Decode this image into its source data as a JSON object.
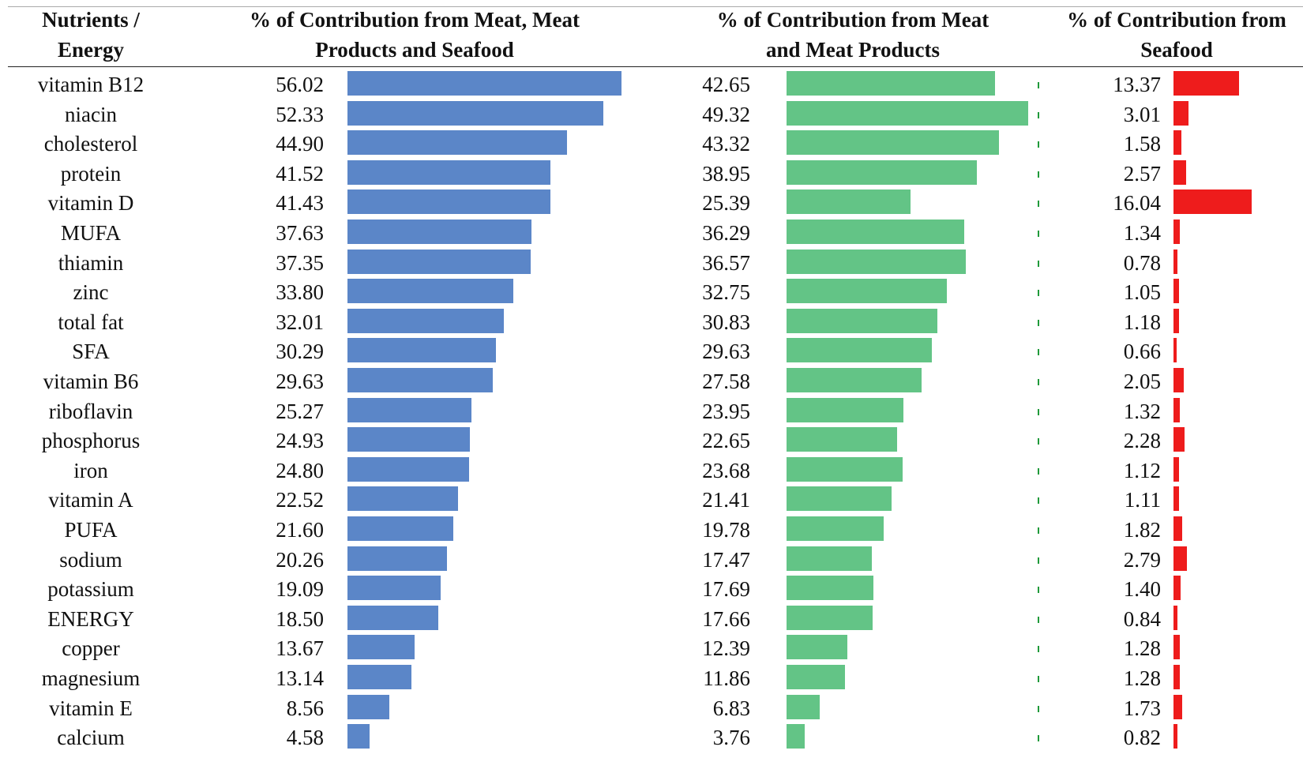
{
  "headers": {
    "col1": [
      "Nutrients /",
      "Energy"
    ],
    "col2": [
      "% of Contribution from Meat, Meat",
      "Products and Seafood"
    ],
    "col3": [
      "% of Contribution from Meat",
      "and Meat Products"
    ],
    "col4": [
      "% of Contribution from",
      "Seafood"
    ]
  },
  "colors": {
    "total": "#5B86C8",
    "meat": "#63C486",
    "seafood": "#EE1C1C"
  },
  "chart_data": {
    "type": "bar",
    "orientation": "horizontal",
    "categories": [
      "vitamin B12",
      "niacin",
      "cholesterol",
      "protein",
      "vitamin D",
      "MUFA",
      "thiamin",
      "zinc",
      "total fat",
      "SFA",
      "vitamin B6",
      "riboflavin",
      "phosphorus",
      "iron",
      "vitamin A",
      "PUFA",
      "sodium",
      "potassium",
      "ENERGY",
      "copper",
      "magnesium",
      "vitamin E",
      "calcium"
    ],
    "series": [
      {
        "name": "% of Contribution from Meat, Meat Products and Seafood",
        "values": [
          "56.02",
          "52.33",
          "44.90",
          "41.52",
          "41.43",
          "37.63",
          "37.35",
          "33.80",
          "32.01",
          "30.29",
          "29.63",
          "25.27",
          "24.93",
          "24.80",
          "22.52",
          "21.60",
          "20.26",
          "19.09",
          "18.50",
          "13.67",
          "13.14",
          "8.56",
          "4.58"
        ]
      },
      {
        "name": "% of Contribution from Meat and Meat Products",
        "values": [
          "42.65",
          "49.32",
          "43.32",
          "38.95",
          "25.39",
          "36.29",
          "36.57",
          "32.75",
          "30.83",
          "29.63",
          "27.58",
          "23.95",
          "22.65",
          "23.68",
          "21.41",
          "19.78",
          "17.47",
          "17.69",
          "17.66",
          "12.39",
          "11.86",
          "6.83",
          "3.76"
        ]
      },
      {
        "name": "% of Contribution from Seafood",
        "values": [
          "13.37",
          "3.01",
          "1.58",
          "2.57",
          "16.04",
          "1.34",
          "0.78",
          "1.05",
          "1.18",
          "0.66",
          "2.05",
          "1.32",
          "2.28",
          "1.12",
          "1.11",
          "1.82",
          "2.79",
          "1.40",
          "0.84",
          "1.28",
          "1.28",
          "1.73",
          "0.82"
        ]
      }
    ]
  }
}
